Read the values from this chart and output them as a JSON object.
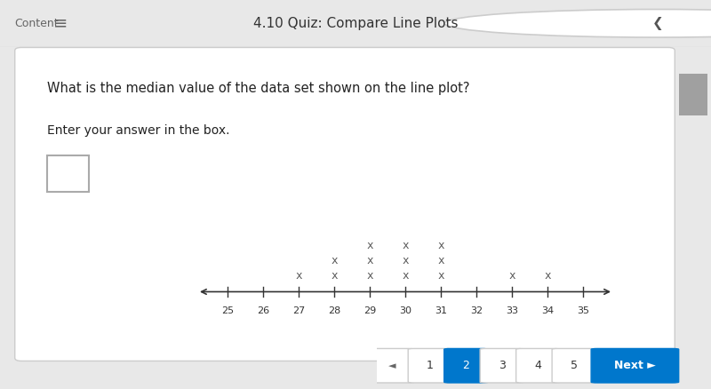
{
  "title": "4.10 Quiz: Compare Line Plots",
  "question": "What is the median value of the data set shown on the line plot?",
  "instruction": "Enter your answer in the box.",
  "axis_min": 24,
  "axis_max": 36,
  "tick_min": 25,
  "tick_max": 35,
  "tick_step": 1,
  "data_points": {
    "27": 1,
    "28": 2,
    "29": 3,
    "30": 3,
    "31": 3,
    "33": 1,
    "34": 1
  },
  "bg_color": "#e8e8e8",
  "panel_color": "#ffffff",
  "axis_color": "#333333",
  "marker_color": "#555555",
  "header_color": "#f8f8f8",
  "header_border": "#dddddd",
  "nav_button_color": "#0077cc",
  "nav_text_color": "#ffffff",
  "page_numbers": [
    1,
    2,
    3,
    4,
    5
  ],
  "current_page": 2
}
